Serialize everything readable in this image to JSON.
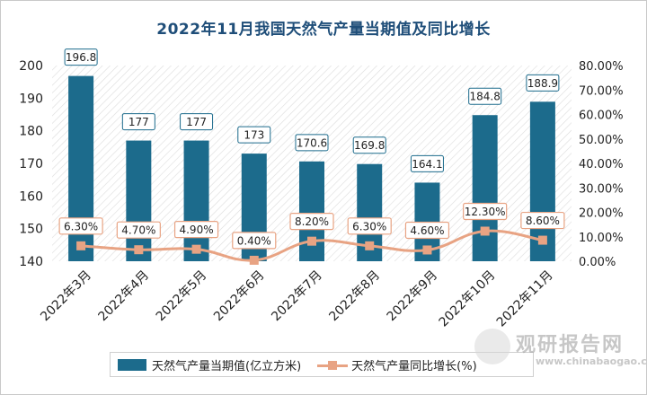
{
  "page": {
    "title": "2022年11月我国天然气产量当期值及同比增长"
  },
  "chart_data": {
    "type": "bar",
    "title": "2022年11月我国天然气产量当期值及同比增长",
    "categories": [
      "2022年3月",
      "2022年4月",
      "2022年5月",
      "2022年6月",
      "2022年7月",
      "2022年8月",
      "2022年9月",
      "2022年10月",
      "2022年11月"
    ],
    "series": [
      {
        "name": "天然气产量当期值(亿立方米)",
        "type": "bar",
        "axis": "left",
        "values": [
          196.8,
          177,
          177,
          173,
          170.6,
          169.8,
          164.1,
          184.8,
          188.9
        ],
        "labels": [
          "196.8",
          "177",
          "177",
          "173",
          "170.6",
          "169.8",
          "164.1",
          "184.8",
          "188.9"
        ],
        "color": "#1c6b8c"
      },
      {
        "name": "天然气产量同比增长(%)",
        "type": "line",
        "axis": "right",
        "values": [
          6.3,
          4.7,
          4.9,
          0.4,
          8.2,
          6.3,
          4.6,
          12.3,
          8.6
        ],
        "labels": [
          "6.30%",
          "4.70%",
          "4.90%",
          "0.40%",
          "8.20%",
          "6.30%",
          "4.60%",
          "12.30%",
          "8.60%"
        ],
        "color": "#e8a383"
      }
    ],
    "y_left": {
      "min": 140,
      "max": 200,
      "step": 10,
      "ticks": [
        "140",
        "150",
        "160",
        "170",
        "180",
        "190",
        "200"
      ]
    },
    "y_right": {
      "min": 0,
      "max": 80,
      "step": 10,
      "ticks": [
        "0.00%",
        "10.00%",
        "20.00%",
        "30.00%",
        "40.00%",
        "50.00%",
        "60.00%",
        "70.00%",
        "80.00%"
      ]
    },
    "legend_position": "bottom"
  },
  "watermark": {
    "brand": "观研报告网",
    "url": "www.chinabaogao.com"
  }
}
